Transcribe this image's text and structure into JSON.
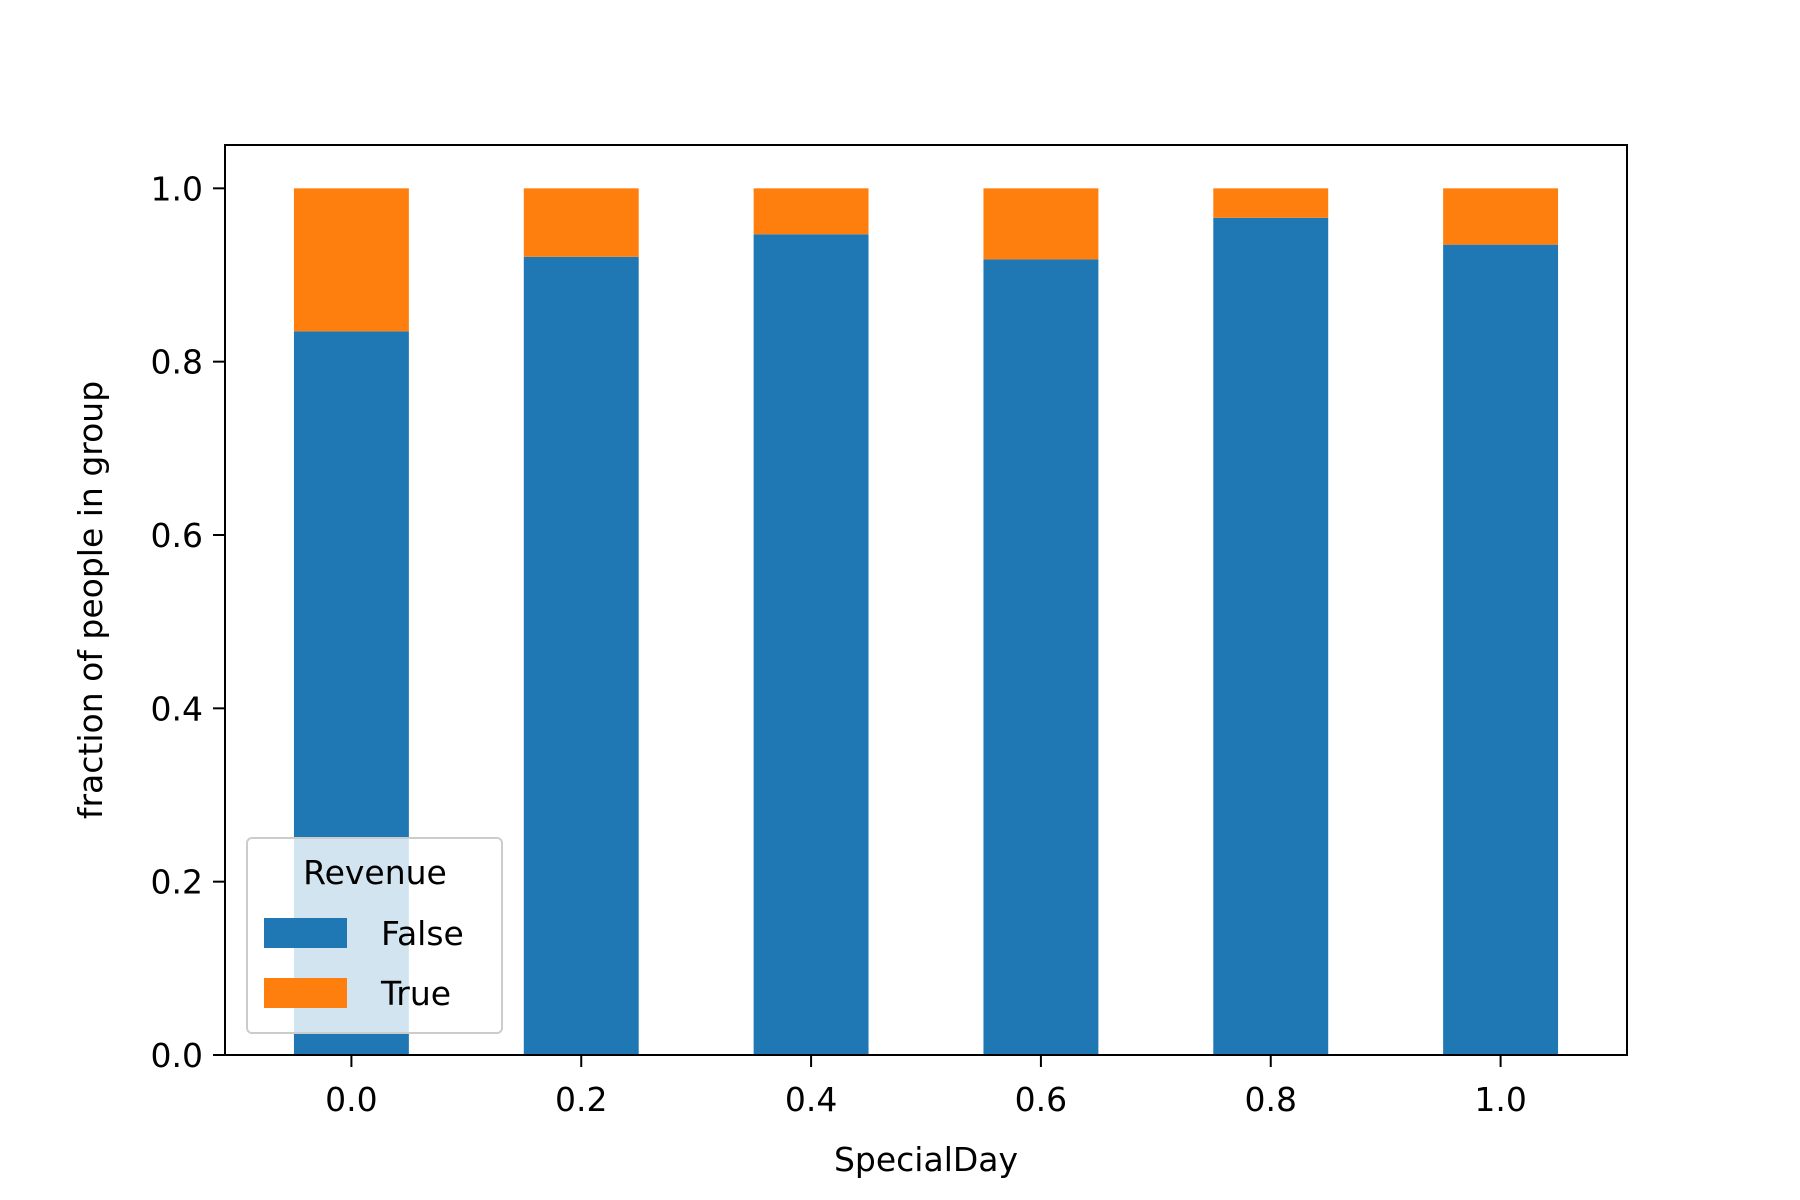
{
  "chart_data": {
    "type": "bar",
    "stacked": true,
    "categories": [
      "0.0",
      "0.2",
      "0.4",
      "0.6",
      "0.8",
      "1.0"
    ],
    "series": [
      {
        "name": "False",
        "values": [
          0.835,
          0.921,
          0.947,
          0.918,
          0.966,
          0.935
        ]
      },
      {
        "name": "True",
        "values": [
          0.165,
          0.079,
          0.053,
          0.082,
          0.034,
          0.065
        ]
      }
    ],
    "title": "",
    "xlabel": "SpecialDay",
    "ylabel": "fraction of people in group",
    "ylim": [
      0,
      1.05
    ],
    "yticks": [
      "0.0",
      "0.2",
      "0.4",
      "0.6",
      "0.8",
      "1.0"
    ],
    "grid": false,
    "legend": {
      "title": "Revenue",
      "placement": "lower-left"
    },
    "colors": {
      "False": "#1f77b4",
      "True": "#ff7f0e"
    }
  }
}
